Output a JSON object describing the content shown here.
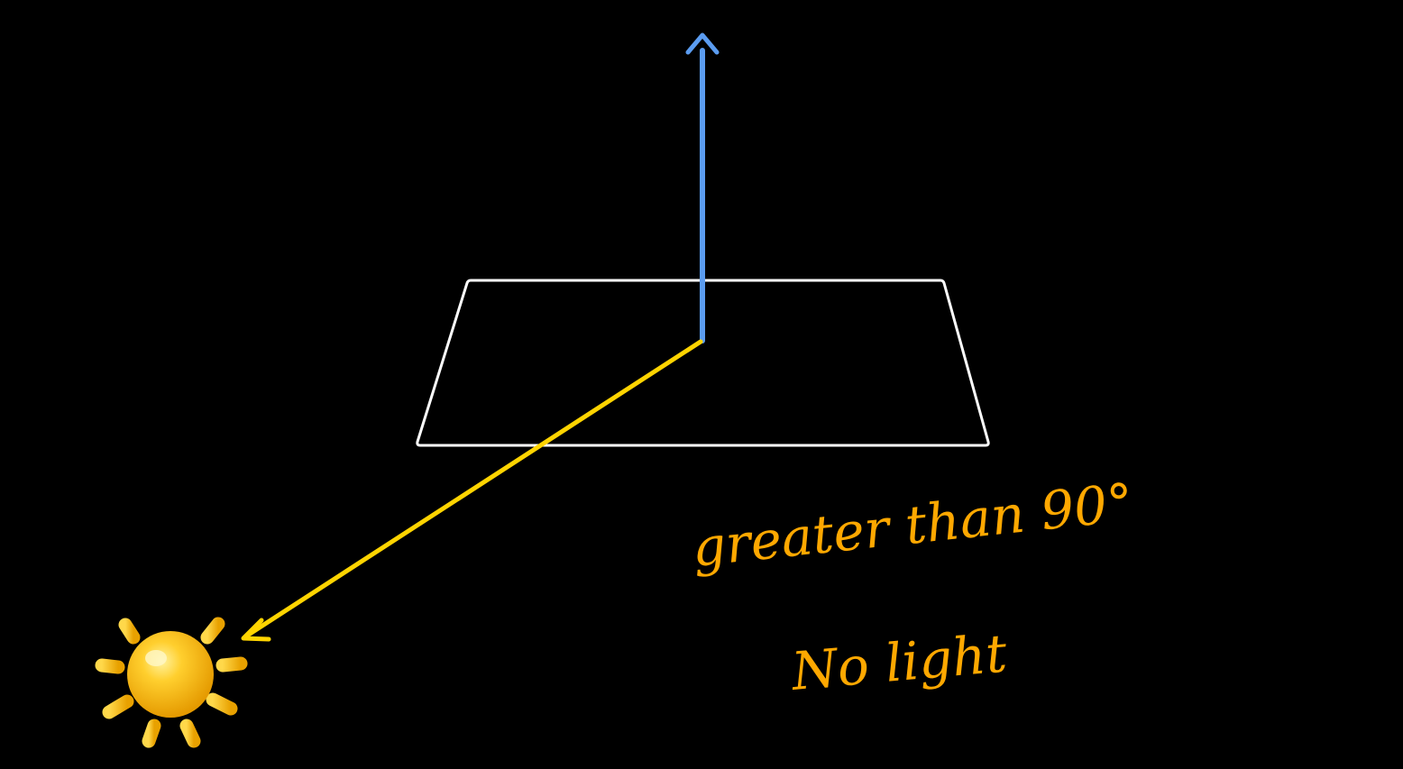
{
  "scene": {
    "background": "#000000",
    "plane_color": "#FFFFFF",
    "normal_color": "#5B9CF0",
    "light_ray_color": "#FFD400",
    "annotation_color": "#FFA800",
    "sun_color": "#FFC21A",
    "sun_icon": "sun-icon"
  },
  "annotation": {
    "line1": "greater than 90°",
    "line2": "No light"
  }
}
